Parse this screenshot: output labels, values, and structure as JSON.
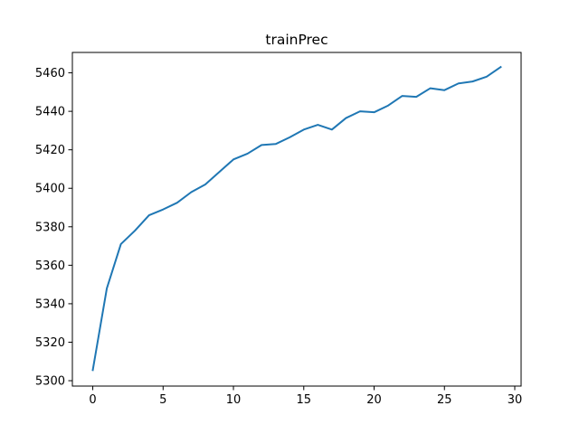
{
  "chart_data": {
    "type": "line",
    "title": "trainPrec",
    "xlabel": "",
    "ylabel": "",
    "xlim": [
      -1.45,
      30.45
    ],
    "ylim": [
      5297.2,
      5470.6
    ],
    "x_ticks": [
      0,
      5,
      10,
      15,
      20,
      25,
      30
    ],
    "y_ticks": [
      5300,
      5320,
      5340,
      5360,
      5380,
      5400,
      5420,
      5440,
      5460
    ],
    "grid": false,
    "series": [
      {
        "color": "#1f77b4",
        "x": [
          0,
          1,
          2,
          3,
          4,
          5,
          6,
          7,
          8,
          9,
          10,
          11,
          12,
          13,
          14,
          15,
          16,
          17,
          18,
          19,
          20,
          21,
          22,
          23,
          24,
          25,
          26,
          27,
          28,
          29
        ],
        "values": [
          5305.5,
          5348.0,
          5371.0,
          5378.0,
          5386.0,
          5389.0,
          5392.5,
          5398.0,
          5402.0,
          5408.5,
          5415.0,
          5418.0,
          5422.5,
          5423.0,
          5426.5,
          5430.5,
          5433.0,
          5430.5,
          5436.5,
          5440.0,
          5439.5,
          5443.0,
          5448.0,
          5447.5,
          5452.0,
          5451.0,
          5454.5,
          5455.5,
          5458.0,
          5463.0
        ]
      }
    ]
  }
}
